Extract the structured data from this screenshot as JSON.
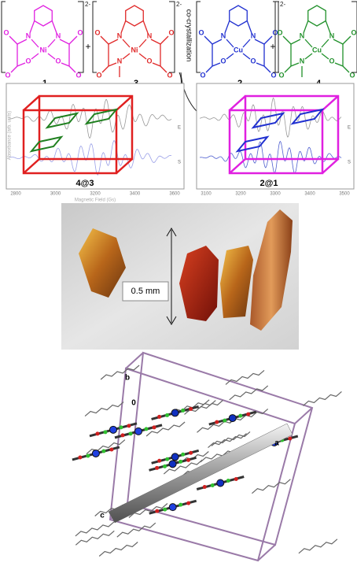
{
  "scheme": {
    "molecules": [
      {
        "number": "1",
        "metal": "Ni",
        "charge": "2-",
        "color": "#e020e0",
        "atoms": [
          "O",
          "N",
          "N",
          "O",
          "O",
          "O",
          "O",
          "O"
        ]
      },
      {
        "number": "3",
        "metal": "Ni",
        "charge": "2-",
        "color": "#e02828",
        "atoms": [
          "O",
          "N",
          "N",
          "O",
          "N",
          "O",
          "O",
          "O"
        ]
      },
      {
        "number": "2",
        "metal": "Cu",
        "charge": "2-",
        "color": "#2030d0",
        "atoms": [
          "O",
          "N",
          "N",
          "O",
          "O",
          "O",
          "O",
          "O"
        ]
      },
      {
        "number": "4",
        "metal": "Cu",
        "charge": "2-",
        "color": "#20902a",
        "atoms": [
          "O",
          "N",
          "N",
          "O",
          "N",
          "O",
          "O",
          "O"
        ]
      }
    ],
    "plus": "+",
    "process": "co-crystallization"
  },
  "spectra": [
    {
      "label": "4@3",
      "xticks": [
        "2800",
        "3000",
        "3200",
        "3400",
        "3600"
      ],
      "xlabel": "Magnetic Field (Gs)",
      "ylabel": "Absorbance (arb. units)",
      "traces": [
        "E",
        "S"
      ]
    },
    {
      "label": "2@1",
      "xticks": [
        "3100",
        "3200",
        "3300",
        "3400",
        "3500"
      ],
      "traces": [
        "E",
        "S"
      ]
    }
  ],
  "photo": {
    "scale_label": "0.5 mm"
  },
  "structure": {
    "axes": [
      "b",
      "0",
      "a",
      "c"
    ]
  }
}
